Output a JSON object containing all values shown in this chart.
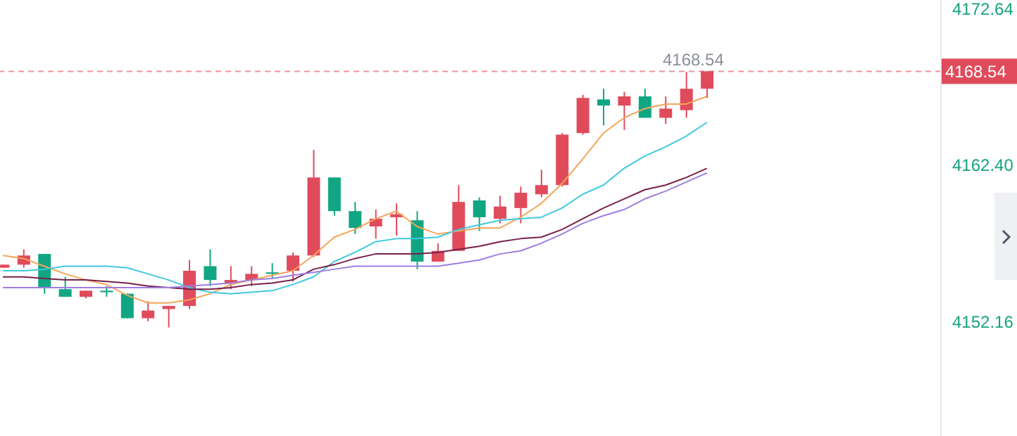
{
  "chart_data": {
    "type": "candlestick",
    "categories": [
      null,
      null,
      null,
      null,
      null,
      null,
      null,
      null,
      null,
      null,
      null,
      null,
      null,
      null,
      null,
      null,
      null,
      null,
      null,
      null,
      null,
      null,
      null,
      null,
      null,
      null,
      null,
      null,
      null,
      null,
      null,
      null,
      null,
      null,
      null
    ],
    "ohlc": [
      [
        4155.7,
        4155.9,
        4155.7,
        4155.9
      ],
      [
        4155.9,
        4156.9,
        4155.7,
        4156.5
      ],
      [
        4156.6,
        4156.6,
        4154.0,
        4154.4
      ],
      [
        4154.3,
        4155.1,
        4153.8,
        4153.8
      ],
      [
        4153.8,
        4154.2,
        4153.7,
        4154.2
      ],
      [
        4154.2,
        4154.5,
        4153.8,
        4154.1
      ],
      [
        4154.0,
        4154.0,
        4152.4,
        4152.4
      ],
      [
        4152.4,
        4153.5,
        4152.2,
        4152.9
      ],
      [
        4153.0,
        4153.2,
        4151.8,
        4153.2
      ],
      [
        4153.2,
        4156.2,
        4153.0,
        4155.5
      ],
      [
        4155.8,
        4156.9,
        4154.5,
        4154.9
      ],
      [
        4154.7,
        4155.8,
        4154.3,
        4154.9
      ],
      [
        4154.9,
        4155.8,
        4154.5,
        4155.3
      ],
      [
        4155.4,
        4156.0,
        4155.0,
        4155.3
      ],
      [
        4155.5,
        4156.7,
        4154.8,
        4156.5
      ],
      [
        4156.5,
        4163.4,
        4156.4,
        4161.6
      ],
      [
        4161.6,
        4161.6,
        4159.1,
        4159.4
      ],
      [
        4159.4,
        4160.0,
        4157.9,
        4158.3
      ],
      [
        4158.4,
        4159.5,
        4157.6,
        4158.9
      ],
      [
        4159.0,
        4159.9,
        4157.8,
        4159.2
      ],
      [
        4158.8,
        4159.4,
        4155.6,
        4156.1
      ],
      [
        4156.1,
        4157.3,
        4156.1,
        4156.8
      ],
      [
        4156.8,
        4161.1,
        4156.8,
        4160.0
      ],
      [
        4160.1,
        4160.3,
        4158.1,
        4159.0
      ],
      [
        4158.9,
        4160.4,
        4158.6,
        4159.7
      ],
      [
        4159.6,
        4161.0,
        4158.6,
        4160.6
      ],
      [
        4160.5,
        4162.1,
        4160.3,
        4161.1
      ],
      [
        4161.1,
        4164.5,
        4161.0,
        4164.4
      ],
      [
        4164.5,
        4167.0,
        4164.4,
        4166.8
      ],
      [
        4166.7,
        4167.4,
        4165.0,
        4166.3
      ],
      [
        4166.3,
        4167.2,
        4164.7,
        4166.9
      ],
      [
        4166.9,
        4167.4,
        4165.5,
        4165.5
      ],
      [
        4165.5,
        4166.9,
        4165.1,
        4166.1
      ],
      [
        4166.0,
        4168.5,
        4165.5,
        4167.4
      ],
      [
        4167.4,
        4168.54,
        4166.8,
        4168.54
      ]
    ],
    "colors": [
      "#e04b5b",
      "#e04b5b",
      "#11a683",
      "#11a683",
      "#e04b5b",
      "#11a683",
      "#11a683",
      "#e04b5b",
      "#e04b5b",
      "#e04b5b",
      "#11a683",
      "#e04b5b",
      "#e04b5b",
      "#11a683",
      "#e04b5b",
      "#e04b5b",
      "#11a683",
      "#11a683",
      "#e04b5b",
      "#e04b5b",
      "#11a683",
      "#e04b5b",
      "#e04b5b",
      "#11a683",
      "#e04b5b",
      "#e04b5b",
      "#e04b5b",
      "#e04b5b",
      "#e04b5b",
      "#11a683",
      "#e04b5b",
      "#11a683",
      "#e04b5b",
      "#e04b5b",
      "#e04b5b"
    ],
    "series": [
      {
        "type": "line",
        "color": "#f5a55a",
        "values": [
          4156.5,
          4156.3,
          4155.8,
          4155.3,
          4154.9,
          4154.6,
          4153.9,
          4153.4,
          4153.4,
          4153.6,
          4154.0,
          4154.6,
          4154.9,
          4155.2,
          4155.5,
          4156.5,
          4157.7,
          4158.2,
          4158.9,
          4159.4,
          4158.4,
          4157.9,
          4158.1,
          4158.3,
          4158.3,
          4159.0,
          4159.9,
          4161.2,
          4162.8,
          4164.5,
          4165.5,
          4166.1,
          4166.4,
          4166.4,
          4166.9
        ]
      },
      {
        "type": "line",
        "color": "#3fc8e0",
        "values": [
          4155.5,
          4155.5,
          4155.6,
          4155.8,
          4155.8,
          4155.8,
          4155.7,
          4155.3,
          4154.9,
          4154.4,
          4154.1,
          4154.0,
          4154.1,
          4154.2,
          4154.6,
          4155.1,
          4156.1,
          4156.7,
          4157.4,
          4157.6,
          4157.6,
          4157.7,
          4158.2,
          4158.5,
          4158.8,
          4158.9,
          4159.0,
          4159.6,
          4160.5,
          4161.1,
          4162.2,
          4163.0,
          4163.6,
          4164.3,
          4165.2
        ]
      },
      {
        "type": "line",
        "color": "#7a1f4a",
        "values": [
          4155.1,
          4155.1,
          4155.0,
          4154.9,
          4154.9,
          4154.8,
          4154.7,
          4154.5,
          4154.4,
          4154.3,
          4154.3,
          4154.4,
          4154.6,
          4154.7,
          4154.9,
          4155.6,
          4155.9,
          4156.3,
          4156.6,
          4156.6,
          4156.6,
          4156.7,
          4156.9,
          4157.1,
          4157.4,
          4157.6,
          4157.7,
          4158.2,
          4158.9,
          4159.6,
          4160.2,
          4160.8,
          4161.1,
          4161.6,
          4162.2
        ]
      },
      {
        "type": "line",
        "color": "#a07de0",
        "values": [
          4154.4,
          4154.4,
          4154.4,
          4154.4,
          4154.4,
          4154.4,
          4154.4,
          4154.4,
          4154.4,
          4154.5,
          4154.6,
          4154.7,
          4154.9,
          4155.0,
          4155.2,
          4155.4,
          4155.6,
          4155.8,
          4155.8,
          4155.8,
          4155.8,
          4155.8,
          4156.0,
          4156.2,
          4156.6,
          4156.8,
          4157.3,
          4157.9,
          4158.6,
          4159.1,
          4159.5,
          4160.2,
          4160.7,
          4161.3,
          4161.9
        ]
      }
    ],
    "ylim": [
      4144.7,
      4173.2
    ],
    "yticks": [
      4152.16,
      {
        "value": 4162.4,
        "label": "4162.40"
      },
      4172.64
    ],
    "tick_labels": "y",
    "ref_lines": [
      {
        "axis": "y",
        "value": 4168.54,
        "label": "4168.54",
        "color": "#e04b5b",
        "line_style": "dashed"
      }
    ],
    "annotations": [
      {
        "text": "4168.54",
        "y": 4168.54
      }
    ]
  }
}
